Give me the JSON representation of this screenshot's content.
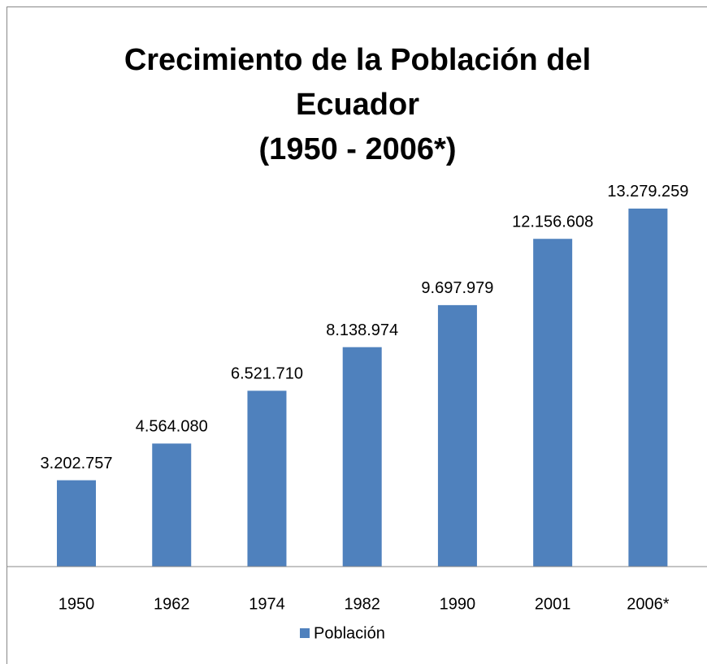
{
  "chart_data": {
    "type": "bar",
    "title": [
      "Crecimiento de la Población del",
      "Ecuador",
      "(1950 - 2006*)"
    ],
    "categories": [
      "1950",
      "1962",
      "1974",
      "1982",
      "1990",
      "2001",
      "2006*"
    ],
    "series": [
      {
        "name": "Población",
        "color": "#4f81bd",
        "values": [
          3202757,
          4564080,
          6521710,
          8138974,
          9697979,
          12156608,
          13279259
        ],
        "value_labels": [
          "3.202.757",
          "4.564.080",
          "6.521.710",
          "8.138.974",
          "9.697.979",
          "12.156.608",
          "13.279.259"
        ]
      }
    ],
    "ylim": [
      0,
      14000000
    ]
  }
}
